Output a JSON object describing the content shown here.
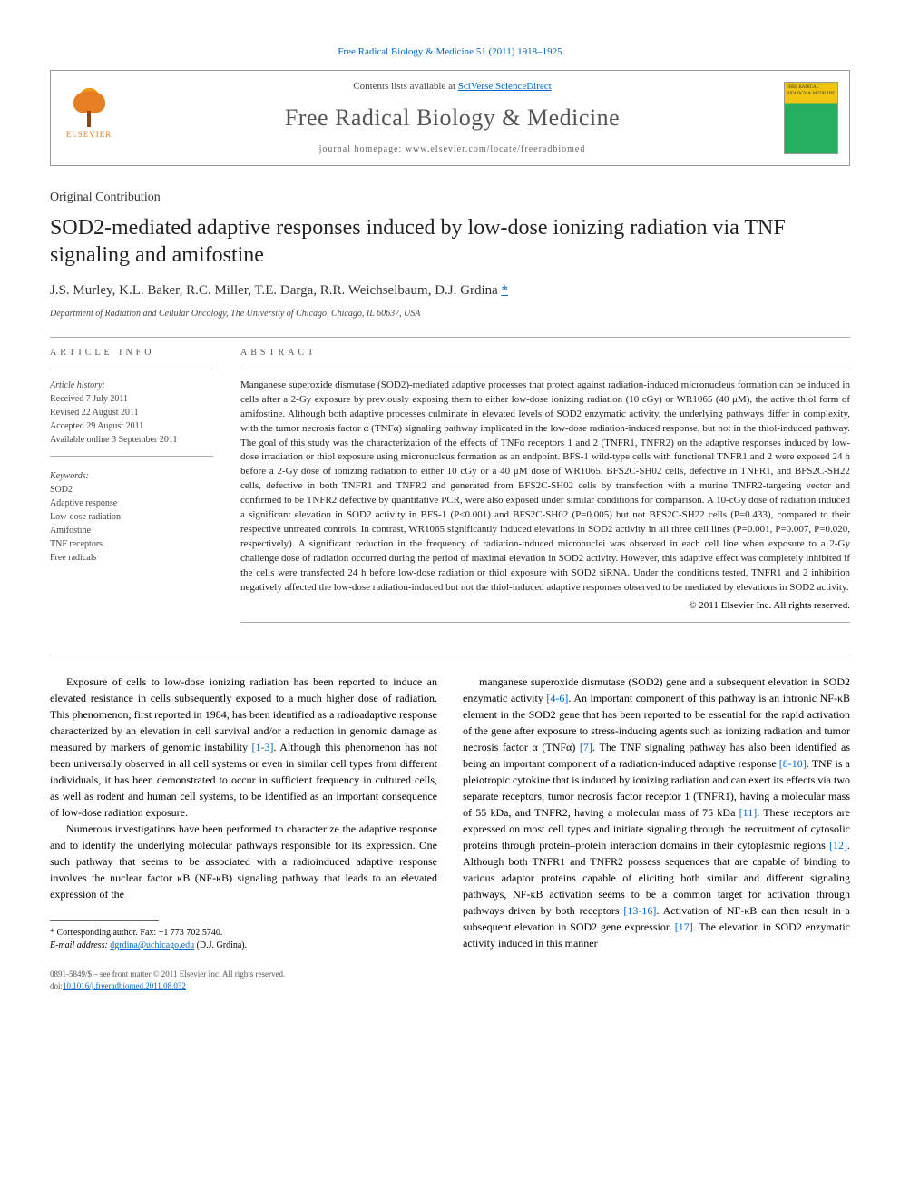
{
  "top_link": "Free Radical Biology & Medicine 51 (2011) 1918–1925",
  "header": {
    "elsevier": "ELSEVIER",
    "contents_prefix": "Contents lists available at ",
    "contents_link": "SciVerse ScienceDirect",
    "journal": "Free Radical Biology & Medicine",
    "homepage": "journal homepage: www.elsevier.com/locate/freeradbiomed",
    "cover_text": "FREE RADICAL BIOLOGY & MEDICINE"
  },
  "section_type": "Original Contribution",
  "title": "SOD2-mediated adaptive responses induced by low-dose ionizing radiation via TNF signaling and amifostine",
  "authors": "J.S. Murley, K.L. Baker, R.C. Miller, T.E. Darga, R.R. Weichselbaum, D.J. Grdina ",
  "corresp_mark": "*",
  "affiliation": "Department of Radiation and Cellular Oncology, The University of Chicago, Chicago, IL 60637, USA",
  "info": {
    "heading": "ARTICLE INFO",
    "history_label": "Article history:",
    "received": "Received 7 July 2011",
    "revised": "Revised 22 August 2011",
    "accepted": "Accepted 29 August 2011",
    "online": "Available online 3 September 2011",
    "keywords_label": "Keywords:",
    "keywords": [
      "SOD2",
      "Adaptive response",
      "Low-dose radiation",
      "Amifostine",
      "TNF receptors",
      "Free radicals"
    ]
  },
  "abstract": {
    "heading": "ABSTRACT",
    "text": "Manganese superoxide dismutase (SOD2)-mediated adaptive processes that protect against radiation-induced micronucleus formation can be induced in cells after a 2-Gy exposure by previously exposing them to either low-dose ionizing radiation (10 cGy) or WR1065 (40 μM), the active thiol form of amifostine. Although both adaptive processes culminate in elevated levels of SOD2 enzymatic activity, the underlying pathways differ in complexity, with the tumor necrosis factor α (TNFα) signaling pathway implicated in the low-dose radiation-induced response, but not in the thiol-induced pathway. The goal of this study was the characterization of the effects of TNFα receptors 1 and 2 (TNFR1, TNFR2) on the adaptive responses induced by low-dose irradiation or thiol exposure using micronucleus formation as an endpoint. BFS-1 wild-type cells with functional TNFR1 and 2 were exposed 24 h before a 2-Gy dose of ionizing radiation to either 10 cGy or a 40 μM dose of WR1065. BFS2C-SH02 cells, defective in TNFR1, and BFS2C-SH22 cells, defective in both TNFR1 and TNFR2 and generated from BFS2C-SH02 cells by transfection with a murine TNFR2-targeting vector and confirmed to be TNFR2 defective by quantitative PCR, were also exposed under similar conditions for comparison. A 10-cGy dose of radiation induced a significant elevation in SOD2 activity in BFS-1 (P<0.001) and BFS2C-SH02 (P=0.005) but not BFS2C-SH22 cells (P=0.433), compared to their respective untreated controls. In contrast, WR1065 significantly induced elevations in SOD2 activity in all three cell lines (P=0.001, P=0.007, P=0.020, respectively). A significant reduction in the frequency of radiation-induced micronuclei was observed in each cell line when exposure to a 2-Gy challenge dose of radiation occurred during the period of maximal elevation in SOD2 activity. However, this adaptive effect was completely inhibited if the cells were transfected 24 h before low-dose radiation or thiol exposure with SOD2 siRNA. Under the conditions tested, TNFR1 and 2 inhibition negatively affected the low-dose radiation-induced but not the thiol-induced adaptive responses observed to be mediated by elevations in SOD2 activity.",
    "copyright": "© 2011 Elsevier Inc. All rights reserved."
  },
  "body": {
    "left": [
      "Exposure of cells to low-dose ionizing radiation has been reported to induce an elevated resistance in cells subsequently exposed to a much higher dose of radiation. This phenomenon, first reported in 1984, has been identified as a radioadaptive response characterized by an elevation in cell survival and/or a reduction in genomic damage as measured by markers of genomic instability [1-3]. Although this phenomenon has not been universally observed in all cell systems or even in similar cell types from different individuals, it has been demonstrated to occur in sufficient frequency in cultured cells, as well as rodent and human cell systems, to be identified as an important consequence of low-dose radiation exposure.",
      "Numerous investigations have been performed to characterize the adaptive response and to identify the underlying molecular pathways responsible for its expression. One such pathway that seems to be associated with a radioinduced adaptive response involves the nuclear factor κB (NF-κB) signaling pathway that leads to an elevated expression of the"
    ],
    "right": [
      "manganese superoxide dismutase (SOD2) gene and a subsequent elevation in SOD2 enzymatic activity [4-6]. An important component of this pathway is an intronic NF-κB element in the SOD2 gene that has been reported to be essential for the rapid activation of the gene after exposure to stress-inducing agents such as ionizing radiation and tumor necrosis factor α (TNFα) [7]. The TNF signaling pathway has also been identified as being an important component of a radiation-induced adaptive response [8-10]. TNF is a pleiotropic cytokine that is induced by ionizing radiation and can exert its effects via two separate receptors, tumor necrosis factor receptor 1 (TNFR1), having a molecular mass of 55 kDa, and TNFR2, having a molecular mass of 75 kDa [11]. These receptors are expressed on most cell types and initiate signaling through the recruitment of cytosolic proteins through protein–protein interaction domains in their cytoplasmic regions [12]. Although both TNFR1 and TNFR2 possess sequences that are capable of binding to various adaptor proteins capable of eliciting both similar and different signaling pathways, NF-κB activation seems to be a common target for activation through pathways driven by both receptors [13-16]. Activation of NF-κB can then result in a subsequent elevation in SOD2 gene expression [17]. The elevation in SOD2 enzymatic activity induced in this manner"
    ]
  },
  "footnote": {
    "corresp": "* Corresponding author. Fax: +1 773 702 5740.",
    "email_label": "E-mail address: ",
    "email": "dgrdina@uchicago.edu",
    "email_suffix": " (D.J. Grdina)."
  },
  "footer": {
    "line1": "0891-5849/$ – see front matter © 2011 Elsevier Inc. All rights reserved.",
    "doi_prefix": "doi:",
    "doi": "10.1016/j.freeradbiomed.2011.08.032"
  },
  "colors": {
    "link": "#0066cc",
    "text": "#222",
    "muted": "#555",
    "border": "#999"
  }
}
